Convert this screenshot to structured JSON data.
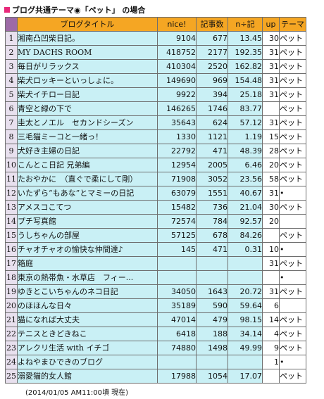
{
  "title": "ブログ共通テーマ◉「ペット」 の場合",
  "headers": {
    "blog_title": "ブログタイトル",
    "nice": "nice!",
    "articles": "記事数",
    "ratio": "n÷記",
    "up": "up",
    "theme": "テーマ"
  },
  "rows": [
    {
      "no": "1",
      "name": "湘南凸凹柴日記。",
      "nice": "9104",
      "articles": "677",
      "ratio": "13.45",
      "up": "30",
      "theme": "ペット"
    },
    {
      "no": "2",
      "name": "MY DACHS ROOM",
      "nice": "418752",
      "articles": "2177",
      "ratio": "192.35",
      "up": "31",
      "theme": "ペット"
    },
    {
      "no": "3",
      "name": "毎日がリラックス",
      "nice": "410304",
      "articles": "2520",
      "ratio": "162.82",
      "up": "31",
      "theme": "ペット"
    },
    {
      "no": "4",
      "name": "柴犬ロッキーといっしょに。",
      "nice": "149690",
      "articles": "969",
      "ratio": "154.48",
      "up": "31",
      "theme": "ペット"
    },
    {
      "no": "5",
      "name": "柴犬イチロー日記",
      "nice": "9922",
      "articles": "394",
      "ratio": "25.18",
      "up": "31",
      "theme": "ペット"
    },
    {
      "no": "6",
      "name": "青空と緑の下で",
      "nice": "146265",
      "articles": "1746",
      "ratio": "83.77",
      "up": "",
      "theme": "ペット"
    },
    {
      "no": "7",
      "name": "圭太とノエル　セカンドシーズン",
      "nice": "35643",
      "articles": "624",
      "ratio": "57.12",
      "up": "31",
      "theme": "ペット"
    },
    {
      "no": "8",
      "name": "三毛猫ミーコと一緒っ！",
      "nice": "1330",
      "articles": "1121",
      "ratio": "1.19",
      "up": "15",
      "theme": "ペット"
    },
    {
      "no": "9",
      "name": "犬好き主婦の日記",
      "nice": "22792",
      "articles": "471",
      "ratio": "48.39",
      "up": "28",
      "theme": "ペット"
    },
    {
      "no": "10",
      "name": "こんとこ日記 兄弟編",
      "nice": "12954",
      "articles": "2005",
      "ratio": "6.46",
      "up": "20",
      "theme": "ペット"
    },
    {
      "no": "11",
      "name": "たおやかに　（直ぐで柔にして剛）",
      "nice": "71908",
      "articles": "3052",
      "ratio": "23.56",
      "up": "58",
      "theme": "ペット"
    },
    {
      "no": "12",
      "name": "いたずら“もあな”とマミーの日記",
      "nice": "63079",
      "articles": "1551",
      "ratio": "40.67",
      "up": "31",
      "theme": "•"
    },
    {
      "no": "13",
      "name": "アメスコこてつ",
      "nice": "15482",
      "articles": "736",
      "ratio": "21.04",
      "up": "30",
      "theme": "ペット"
    },
    {
      "no": "14",
      "name": "プチ写真館",
      "nice": "72574",
      "articles": "784",
      "ratio": "92.57",
      "up": "20",
      "theme": ""
    },
    {
      "no": "15",
      "name": "うしちゃんの部屋",
      "nice": "57125",
      "articles": "678",
      "ratio": "84.26",
      "up": "",
      "theme": "ペット"
    },
    {
      "no": "16",
      "name": "チャオチャオの愉快な仲間達♪",
      "nice": "145",
      "articles": "471",
      "ratio": "0.31",
      "up": "10",
      "theme": "•"
    },
    {
      "no": "17",
      "name": "箱庭",
      "nice": "",
      "articles": "",
      "ratio": "",
      "up": "31",
      "theme": "ペット"
    },
    {
      "no": "18",
      "name": "東京の熱帯魚・水草店　フィー...",
      "nice": "",
      "articles": "",
      "ratio": "",
      "up": "",
      "theme": "•"
    },
    {
      "no": "19",
      "name": "ゆきとこいちゃんのネコ日記",
      "nice": "34050",
      "articles": "1643",
      "ratio": "20.72",
      "up": "31",
      "theme": "ペット"
    },
    {
      "no": "20",
      "name": "のほほんな日々",
      "nice": "35189",
      "articles": "590",
      "ratio": "59.64",
      "up": "6",
      "theme": ""
    },
    {
      "no": "21",
      "name": "猫になれば大丈夫",
      "nice": "47014",
      "articles": "479",
      "ratio": "98.15",
      "up": "14",
      "theme": "ペット"
    },
    {
      "no": "22",
      "name": "テニスときどきねこ",
      "nice": "6418",
      "articles": "188",
      "ratio": "34.14",
      "up": "4",
      "theme": "ペット"
    },
    {
      "no": "23",
      "name": "アレクリ生活 with イチゴ",
      "nice": "74880",
      "articles": "1498",
      "ratio": "49.99",
      "up": "9",
      "theme": "ペット"
    },
    {
      "no": "24",
      "name": "よねやまひできのブログ",
      "nice": "",
      "articles": "",
      "ratio": "",
      "up": "1",
      "theme": "•"
    },
    {
      "no": "25",
      "name": "溺愛猫的女人館",
      "nice": "17988",
      "articles": "1054",
      "ratio": "17.07",
      "up": "",
      "theme": "ペット"
    }
  ],
  "note": "(2014/01/05 AM11:00頃 現在)"
}
